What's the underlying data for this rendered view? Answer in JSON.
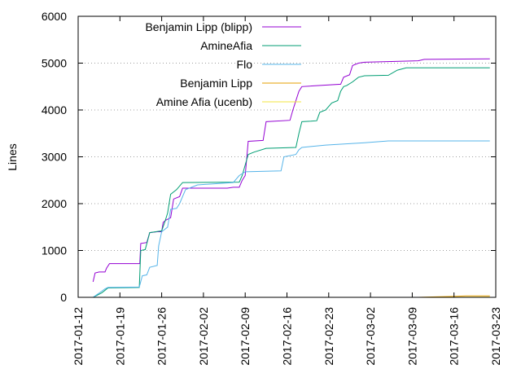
{
  "chart_data": {
    "type": "line",
    "ylabel": "Lines",
    "xlabel": "",
    "ylim": [
      0,
      6000
    ],
    "xlim": [
      "2017-01-12",
      "2017-03-23"
    ],
    "grid": "horizontal",
    "legend_position": "top-left",
    "y_ticks": [
      0,
      1000,
      2000,
      3000,
      4000,
      5000,
      6000
    ],
    "x_ticks": [
      "2017-01-12",
      "2017-01-19",
      "2017-01-26",
      "2017-02-02",
      "2017-02-09",
      "2017-02-16",
      "2017-02-23",
      "2017-03-02",
      "2017-03-09",
      "2017-03-16",
      "2017-03-23"
    ],
    "series": [
      {
        "name": "Benjamin Lipp (blipp)",
        "color": "#9400d3",
        "points": [
          [
            "2017-01-14 12:00",
            330
          ],
          [
            "2017-01-14 20:00",
            520
          ],
          [
            "2017-01-15 12:00",
            540
          ],
          [
            "2017-01-16 12:00",
            540
          ],
          [
            "2017-01-16 18:00",
            620
          ],
          [
            "2017-01-17 06:00",
            720
          ],
          [
            "2017-01-20 00:00",
            720
          ],
          [
            "2017-01-22 08:00",
            720
          ],
          [
            "2017-01-22 12:00",
            1150
          ],
          [
            "2017-01-23 12:00",
            1170
          ],
          [
            "2017-01-24 00:00",
            1380
          ],
          [
            "2017-01-25 06:00",
            1400
          ],
          [
            "2017-01-26 00:00",
            1400
          ],
          [
            "2017-01-26 06:00",
            1600
          ],
          [
            "2017-01-26 18:00",
            1650
          ],
          [
            "2017-01-27 12:00",
            1700
          ],
          [
            "2017-01-28 00:00",
            2100
          ],
          [
            "2017-01-29 00:00",
            2150
          ],
          [
            "2017-01-29 12:00",
            2330
          ],
          [
            "2017-02-06 00:00",
            2330
          ],
          [
            "2017-02-07 00:00",
            2350
          ],
          [
            "2017-02-08 00:00",
            2350
          ],
          [
            "2017-02-08 12:00",
            2500
          ],
          [
            "2017-02-09 00:00",
            2600
          ],
          [
            "2017-02-09 12:00",
            3330
          ],
          [
            "2017-02-12 00:00",
            3350
          ],
          [
            "2017-02-12 12:00",
            3750
          ],
          [
            "2017-02-16 12:00",
            3780
          ],
          [
            "2017-02-17 00:00",
            4000
          ],
          [
            "2017-02-18 00:00",
            4400
          ],
          [
            "2017-02-18 12:00",
            4500
          ],
          [
            "2017-02-25 00:00",
            4550
          ],
          [
            "2017-02-25 12:00",
            4700
          ],
          [
            "2017-02-26 12:00",
            4750
          ],
          [
            "2017-02-27 00:00",
            4950
          ],
          [
            "2017-02-28 00:00",
            5000
          ],
          [
            "2017-03-01 00:00",
            5020
          ],
          [
            "2017-03-10 00:00",
            5050
          ],
          [
            "2017-03-11 00:00",
            5080
          ],
          [
            "2017-03-22 00:00",
            5090
          ]
        ]
      },
      {
        "name": "AmineAfia",
        "color": "#009e73",
        "points": [
          [
            "2017-01-14 12:00",
            0
          ],
          [
            "2017-01-16 00:00",
            100
          ],
          [
            "2017-01-17 00:00",
            200
          ],
          [
            "2017-01-22 06:00",
            210
          ],
          [
            "2017-01-22 12:00",
            1000
          ],
          [
            "2017-01-23 06:00",
            1020
          ],
          [
            "2017-01-24 00:00",
            1380
          ],
          [
            "2017-01-25 00:00",
            1400
          ],
          [
            "2017-01-26 00:00",
            1420
          ],
          [
            "2017-01-26 12:00",
            1600
          ],
          [
            "2017-01-27 00:00",
            1800
          ],
          [
            "2017-01-27 12:00",
            2200
          ],
          [
            "2017-01-28 12:00",
            2300
          ],
          [
            "2017-01-29 12:00",
            2450
          ],
          [
            "2017-02-08 00:00",
            2460
          ],
          [
            "2017-02-08 12:00",
            2600
          ],
          [
            "2017-02-09 12:00",
            3050
          ],
          [
            "2017-02-10 12:00",
            3100
          ],
          [
            "2017-02-12 12:00",
            3180
          ],
          [
            "2017-02-17 12:00",
            3200
          ],
          [
            "2017-02-18 00:00",
            3500
          ],
          [
            "2017-02-18 12:00",
            3750
          ],
          [
            "2017-02-20 00:00",
            3760
          ],
          [
            "2017-02-21 00:00",
            3770
          ],
          [
            "2017-02-21 12:00",
            3950
          ],
          [
            "2017-02-22 12:00",
            4000
          ],
          [
            "2017-02-23 12:00",
            4150
          ],
          [
            "2017-02-24 12:00",
            4200
          ],
          [
            "2017-02-25 00:00",
            4400
          ],
          [
            "2017-02-25 12:00",
            4500
          ],
          [
            "2017-02-26 00:00",
            4520
          ],
          [
            "2017-02-27 00:00",
            4600
          ],
          [
            "2017-02-28 00:00",
            4700
          ],
          [
            "2017-03-01 00:00",
            4730
          ],
          [
            "2017-03-05 00:00",
            4740
          ],
          [
            "2017-03-06 12:00",
            4850
          ],
          [
            "2017-03-08 00:00",
            4900
          ],
          [
            "2017-03-22 00:00",
            4900
          ]
        ]
      },
      {
        "name": "Flo",
        "color": "#56b4e9",
        "points": [
          [
            "2017-01-14 12:00",
            0
          ],
          [
            "2017-01-16 12:00",
            180
          ],
          [
            "2017-01-17 00:00",
            210
          ],
          [
            "2017-01-22 06:00",
            220
          ],
          [
            "2017-01-22 18:00",
            460
          ],
          [
            "2017-01-23 12:00",
            480
          ],
          [
            "2017-01-24 00:00",
            640
          ],
          [
            "2017-01-25 06:00",
            680
          ],
          [
            "2017-01-25 12:00",
            1100
          ],
          [
            "2017-01-26 00:00",
            1400
          ],
          [
            "2017-01-27 00:00",
            1500
          ],
          [
            "2017-01-27 12:00",
            1880
          ],
          [
            "2017-01-28 12:00",
            1900
          ],
          [
            "2017-01-29 00:00",
            2000
          ],
          [
            "2017-01-30 00:00",
            2300
          ],
          [
            "2017-02-01 00:00",
            2400
          ],
          [
            "2017-02-07 00:00",
            2450
          ],
          [
            "2017-02-08 00:00",
            2600
          ],
          [
            "2017-02-09 00:00",
            2680
          ],
          [
            "2017-02-15 00:00",
            2700
          ],
          [
            "2017-02-15 12:00",
            3000
          ],
          [
            "2017-02-17 12:00",
            3050
          ],
          [
            "2017-02-18 00:00",
            3150
          ],
          [
            "2017-02-18 12:00",
            3200
          ],
          [
            "2017-02-20 00:00",
            3220
          ],
          [
            "2017-02-22 12:00",
            3250
          ],
          [
            "2017-03-01 00:00",
            3300
          ],
          [
            "2017-03-05 00:00",
            3340
          ],
          [
            "2017-03-22 00:00",
            3340
          ]
        ]
      },
      {
        "name": "Benjamin Lipp",
        "color": "#e69f00",
        "points": [
          [
            "2017-03-10 00:00",
            0
          ],
          [
            "2017-03-13 00:00",
            10
          ],
          [
            "2017-03-16 00:00",
            20
          ],
          [
            "2017-03-18 00:00",
            30
          ],
          [
            "2017-03-22 00:00",
            30
          ]
        ]
      },
      {
        "name": "Amine Afia (ucenb)",
        "color": "#f0e442",
        "points": [
          [
            "2017-03-10 00:00",
            0
          ],
          [
            "2017-03-22 00:00",
            5
          ]
        ]
      }
    ]
  }
}
